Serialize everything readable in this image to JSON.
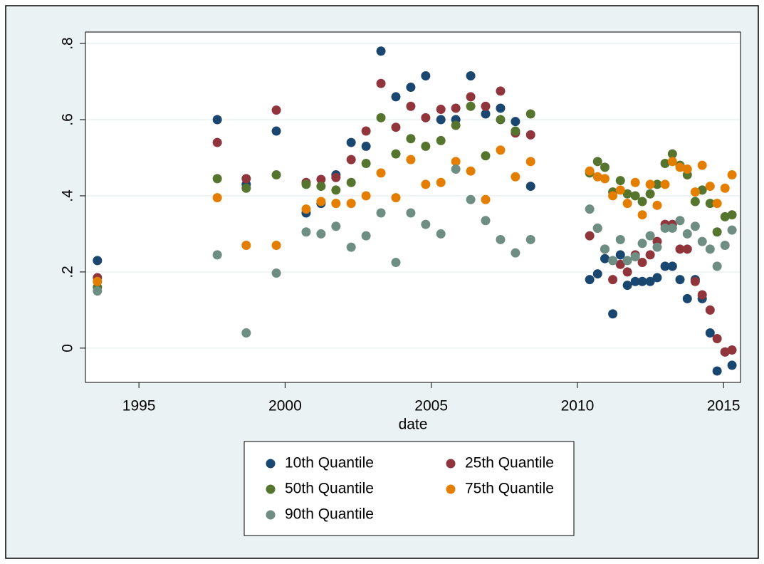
{
  "chart_data": {
    "type": "scatter",
    "x_label": "date",
    "x": [
      1993.58,
      1997.68,
      1998.67,
      1999.7,
      2000.72,
      2001.23,
      2001.74,
      2002.26,
      2002.77,
      2003.28,
      2003.79,
      2004.3,
      2004.81,
      2005.33,
      2005.84,
      2006.35,
      2006.86,
      2007.37,
      2007.88,
      2008.4,
      2010.42,
      2010.69,
      2010.94,
      2011.21,
      2011.47,
      2011.71,
      2011.98,
      2012.22,
      2012.49,
      2012.73,
      2013.0,
      2013.25,
      2013.51,
      2013.76,
      2014.03,
      2014.27,
      2014.54,
      2014.78,
      2015.05,
      2015.29
    ],
    "series": [
      {
        "name": "10th Quantile",
        "color": "#1a476f",
        "values": [
          0.23,
          0.6,
          0.43,
          0.57,
          0.355,
          0.38,
          0.455,
          0.54,
          0.53,
          0.78,
          0.66,
          0.685,
          0.715,
          0.6,
          0.6,
          0.715,
          0.615,
          0.63,
          0.595,
          0.425,
          0.18,
          0.195,
          0.235,
          0.09,
          0.245,
          0.165,
          0.175,
          0.175,
          0.175,
          0.185,
          0.215,
          0.215,
          0.18,
          0.13,
          0.18,
          0.13,
          0.04,
          -0.06,
          -0.01,
          -0.045
        ]
      },
      {
        "name": "25th Quantile",
        "color": "#90353b",
        "values": [
          0.185,
          0.54,
          0.445,
          0.625,
          0.435,
          0.443,
          0.448,
          0.495,
          0.57,
          0.695,
          0.58,
          0.635,
          0.605,
          0.627,
          0.63,
          0.66,
          0.635,
          0.675,
          0.565,
          0.56,
          0.295,
          0.315,
          0.26,
          0.18,
          0.22,
          0.2,
          0.245,
          0.225,
          0.245,
          0.28,
          0.325,
          0.325,
          0.26,
          0.26,
          0.175,
          0.14,
          0.1,
          0.025,
          -0.01,
          -0.005
        ]
      },
      {
        "name": "50th Quantile",
        "color": "#55752f",
        "values": [
          0.16,
          0.445,
          0.42,
          0.455,
          0.43,
          0.425,
          0.415,
          0.435,
          0.485,
          0.605,
          0.51,
          0.55,
          0.53,
          0.545,
          0.585,
          0.635,
          0.505,
          0.6,
          0.57,
          0.615,
          0.46,
          0.49,
          0.475,
          0.41,
          0.44,
          0.405,
          0.4,
          0.385,
          0.405,
          0.43,
          0.485,
          0.51,
          0.48,
          0.455,
          0.385,
          0.415,
          0.38,
          0.305,
          0.345,
          0.35
        ]
      },
      {
        "name": "75th Quantile",
        "color": "#e37e00",
        "values": [
          0.175,
          0.395,
          0.27,
          0.27,
          0.365,
          0.385,
          0.38,
          0.38,
          0.4,
          0.46,
          0.395,
          0.495,
          0.43,
          0.435,
          0.49,
          0.465,
          0.39,
          0.52,
          0.45,
          0.49,
          0.465,
          0.45,
          0.445,
          0.4,
          0.415,
          0.38,
          0.435,
          0.35,
          0.43,
          0.375,
          0.43,
          0.49,
          0.475,
          0.47,
          0.41,
          0.48,
          0.425,
          0.38,
          0.42,
          0.455
        ]
      },
      {
        "name": "90th Quantile",
        "color": "#6e8e84",
        "values": [
          0.15,
          0.245,
          0.04,
          0.197,
          0.305,
          0.3,
          0.32,
          0.265,
          0.295,
          0.355,
          0.225,
          0.355,
          0.325,
          0.3,
          0.47,
          0.39,
          0.335,
          0.285,
          0.25,
          0.285,
          0.365,
          0.315,
          0.26,
          0.23,
          0.285,
          0.23,
          0.24,
          0.275,
          0.295,
          0.265,
          0.315,
          0.315,
          0.335,
          0.3,
          0.32,
          0.28,
          0.26,
          0.215,
          0.27,
          0.31
        ]
      }
    ],
    "xlim": [
      1993.17,
      2015.58
    ],
    "xticks": [
      1995,
      2000,
      2005,
      2010,
      2015
    ],
    "ylim": [
      -0.09,
      0.83
    ],
    "yticks": [
      0,
      {
        "value": 0.2,
        "label": ".2"
      },
      {
        "value": 0.4,
        "label": ".4"
      },
      {
        "value": 0.6,
        "label": ".6"
      },
      {
        "value": 0.8,
        "label": ".8"
      }
    ],
    "grid": true,
    "legend": "bottom"
  }
}
